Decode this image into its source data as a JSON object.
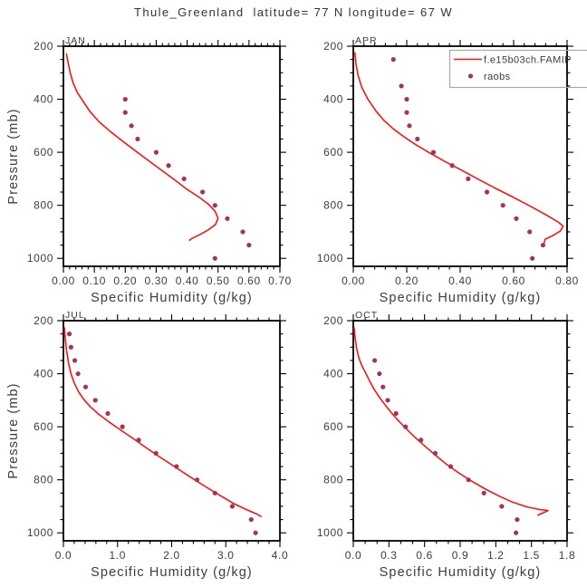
{
  "title": "Thule_Greenland  latitude= 77 N longitude= 67 W",
  "colors": {
    "model_line": "#fa1414",
    "raobs_dot": "#a73256",
    "axis": "#000000",
    "label_text": "#3d3d3d",
    "legend_border": "#a8a8a8"
  },
  "legend": {
    "entries": [
      {
        "style": "line",
        "label": "f.e15b03ch.FAMIP"
      },
      {
        "style": "dot",
        "label": "raobs"
      }
    ]
  },
  "chart_data": [
    {
      "type": "line",
      "title": "JAN",
      "xlabel": "Specific Humidity (g/kg)",
      "ylabel": "Pressure (mb)",
      "xlim": [
        0.0,
        0.7
      ],
      "ylim": [
        200,
        1030
      ],
      "xticks": [
        0.0,
        0.1,
        0.2,
        0.3,
        0.4,
        0.5,
        0.6,
        0.7
      ],
      "xtick_labels": [
        "0.00",
        "0.10",
        "0.20",
        "0.30",
        "0.40",
        "0.50",
        "0.60",
        "0.70"
      ],
      "x_minor_step": 0.02,
      "yticks": [
        200,
        400,
        600,
        800,
        1000
      ],
      "ytick_labels": [
        "200",
        "400",
        "600",
        "800",
        "1000"
      ],
      "y_minor_step": 50,
      "series": [
        {
          "name": "f.e15b03ch.FAMIP",
          "style": "line",
          "points": [
            [
              0.01,
              230
            ],
            [
              0.015,
              260
            ],
            [
              0.022,
              300
            ],
            [
              0.032,
              340
            ],
            [
              0.045,
              375
            ],
            [
              0.062,
              405
            ],
            [
              0.085,
              445
            ],
            [
              0.115,
              485
            ],
            [
              0.15,
              520
            ],
            [
              0.19,
              557
            ],
            [
              0.23,
              592
            ],
            [
              0.27,
              627
            ],
            [
              0.312,
              663
            ],
            [
              0.355,
              700
            ],
            [
              0.4,
              740
            ],
            [
              0.442,
              772
            ],
            [
              0.47,
              797
            ],
            [
              0.49,
              822
            ],
            [
              0.5,
              848
            ],
            [
              0.492,
              872
            ],
            [
              0.468,
              893
            ],
            [
              0.44,
              911
            ],
            [
              0.415,
              925
            ],
            [
              0.408,
              932
            ]
          ]
        },
        {
          "name": "raobs",
          "style": "scatter",
          "points": [
            [
              0.2,
              400
            ],
            [
              0.2,
              450
            ],
            [
              0.22,
              500
            ],
            [
              0.24,
              550
            ],
            [
              0.3,
              600
            ],
            [
              0.34,
              650
            ],
            [
              0.39,
              700
            ],
            [
              0.45,
              750
            ],
            [
              0.49,
              800
            ],
            [
              0.53,
              850
            ],
            [
              0.58,
              900
            ],
            [
              0.6,
              950
            ],
            [
              0.49,
              1000
            ]
          ]
        }
      ]
    },
    {
      "type": "line",
      "title": "APR",
      "xlabel": "Specific Humidity (g/kg)",
      "ylabel": "",
      "xlim": [
        0.0,
        0.8
      ],
      "ylim": [
        200,
        1030
      ],
      "xticks": [
        0.0,
        0.2,
        0.4,
        0.6,
        0.8
      ],
      "xtick_labels": [
        "0.00",
        "0.20",
        "0.40",
        "0.60",
        "0.80"
      ],
      "x_minor_step": 0.04,
      "yticks": [
        200,
        400,
        600,
        800,
        1000
      ],
      "ytick_labels": [
        "200",
        "400",
        "600",
        "800",
        "1000"
      ],
      "y_minor_step": 50,
      "series": [
        {
          "name": "f.e15b03ch.FAMIP",
          "style": "line",
          "points": [
            [
              0.006,
              225
            ],
            [
              0.01,
              265
            ],
            [
              0.018,
              310
            ],
            [
              0.032,
              355
            ],
            [
              0.055,
              400
            ],
            [
              0.085,
              445
            ],
            [
              0.115,
              480
            ],
            [
              0.15,
              512
            ],
            [
              0.19,
              542
            ],
            [
              0.235,
              572
            ],
            [
              0.285,
              602
            ],
            [
              0.34,
              633
            ],
            [
              0.4,
              665
            ],
            [
              0.465,
              700
            ],
            [
              0.53,
              735
            ],
            [
              0.6,
              770
            ],
            [
              0.665,
              805
            ],
            [
              0.72,
              835
            ],
            [
              0.765,
              862
            ],
            [
              0.785,
              878
            ],
            [
              0.775,
              897
            ],
            [
              0.745,
              915
            ],
            [
              0.718,
              928
            ],
            [
              0.715,
              940
            ]
          ]
        },
        {
          "name": "raobs",
          "style": "scatter",
          "points": [
            [
              0.15,
              250
            ],
            [
              0.18,
              350
            ],
            [
              0.2,
              400
            ],
            [
              0.2,
              450
            ],
            [
              0.21,
              500
            ],
            [
              0.24,
              550
            ],
            [
              0.3,
              600
            ],
            [
              0.37,
              650
            ],
            [
              0.43,
              700
            ],
            [
              0.5,
              750
            ],
            [
              0.56,
              800
            ],
            [
              0.61,
              850
            ],
            [
              0.66,
              900
            ],
            [
              0.71,
              950
            ],
            [
              0.67,
              1000
            ]
          ]
        }
      ]
    },
    {
      "type": "line",
      "title": "JUL",
      "xlabel": "Specific Humidity (g/kg)",
      "ylabel": "Pressure (mb)",
      "xlim": [
        0.0,
        4.0
      ],
      "ylim": [
        200,
        1030
      ],
      "xticks": [
        0.0,
        1.0,
        2.0,
        3.0,
        4.0
      ],
      "xtick_labels": [
        "0.0",
        "1.0",
        "2.0",
        "3.0",
        "4.0"
      ],
      "x_minor_step": 0.2,
      "yticks": [
        200,
        400,
        600,
        800,
        1000
      ],
      "ytick_labels": [
        "200",
        "400",
        "600",
        "800",
        "1000"
      ],
      "y_minor_step": 50,
      "series": [
        {
          "name": "f.e15b03ch.FAMIP",
          "style": "line",
          "points": [
            [
              0.02,
              228
            ],
            [
              0.035,
              270
            ],
            [
              0.06,
              315
            ],
            [
              0.095,
              360
            ],
            [
              0.14,
              400
            ],
            [
              0.2,
              435
            ],
            [
              0.28,
              468
            ],
            [
              0.38,
              498
            ],
            [
              0.5,
              525
            ],
            [
              0.65,
              552
            ],
            [
              0.83,
              580
            ],
            [
              1.04,
              610
            ],
            [
              1.27,
              642
            ],
            [
              1.52,
              678
            ],
            [
              1.78,
              714
            ],
            [
              2.05,
              750
            ],
            [
              2.33,
              788
            ],
            [
              2.62,
              825
            ],
            [
              2.9,
              860
            ],
            [
              3.15,
              890
            ],
            [
              3.38,
              912
            ],
            [
              3.56,
              928
            ],
            [
              3.65,
              938
            ]
          ]
        },
        {
          "name": "raobs",
          "style": "scatter",
          "points": [
            [
              0.11,
              250
            ],
            [
              0.14,
              300
            ],
            [
              0.21,
              350
            ],
            [
              0.27,
              400
            ],
            [
              0.41,
              450
            ],
            [
              0.59,
              500
            ],
            [
              0.82,
              550
            ],
            [
              1.09,
              600
            ],
            [
              1.39,
              650
            ],
            [
              1.71,
              700
            ],
            [
              2.09,
              750
            ],
            [
              2.47,
              800
            ],
            [
              2.8,
              850
            ],
            [
              3.12,
              900
            ],
            [
              3.47,
              950
            ],
            [
              3.55,
              1000
            ]
          ]
        }
      ]
    },
    {
      "type": "line",
      "title": "OCT",
      "xlabel": "Specific Humidity (g/kg)",
      "ylabel": "",
      "xlim": [
        0.0,
        1.8
      ],
      "ylim": [
        200,
        1030
      ],
      "xticks": [
        0.0,
        0.3,
        0.6,
        0.9,
        1.2,
        1.5,
        1.8
      ],
      "xtick_labels": [
        "0.0",
        "0.3",
        "0.6",
        "0.9",
        "1.2",
        "1.5",
        "1.8"
      ],
      "x_minor_step": 0.1,
      "yticks": [
        200,
        400,
        600,
        800,
        1000
      ],
      "ytick_labels": [
        "200",
        "400",
        "600",
        "800",
        "1000"
      ],
      "y_minor_step": 50,
      "series": [
        {
          "name": "f.e15b03ch.FAMIP",
          "style": "line",
          "points": [
            [
              0.008,
              228
            ],
            [
              0.015,
              265
            ],
            [
              0.028,
              305
            ],
            [
              0.048,
              342
            ],
            [
              0.075,
              372
            ],
            [
              0.105,
              398
            ],
            [
              0.14,
              430
            ],
            [
              0.18,
              462
            ],
            [
              0.225,
              492
            ],
            [
              0.275,
              522
            ],
            [
              0.33,
              552
            ],
            [
              0.39,
              582
            ],
            [
              0.455,
              612
            ],
            [
              0.525,
              642
            ],
            [
              0.6,
              672
            ],
            [
              0.685,
              705
            ],
            [
              0.775,
              738
            ],
            [
              0.875,
              770
            ],
            [
              0.985,
              802
            ],
            [
              1.1,
              832
            ],
            [
              1.22,
              860
            ],
            [
              1.34,
              884
            ],
            [
              1.46,
              902
            ],
            [
              1.57,
              912
            ],
            [
              1.64,
              916
            ],
            [
              1.6,
              924
            ],
            [
              1.555,
              933
            ]
          ]
        },
        {
          "name": "raobs",
          "style": "scatter",
          "points": [
            [
              0.18,
              350
            ],
            [
              0.22,
              400
            ],
            [
              0.25,
              450
            ],
            [
              0.29,
              500
            ],
            [
              0.36,
              550
            ],
            [
              0.44,
              600
            ],
            [
              0.57,
              650
            ],
            [
              0.69,
              700
            ],
            [
              0.82,
              750
            ],
            [
              0.97,
              800
            ],
            [
              1.1,
              850
            ],
            [
              1.25,
              900
            ],
            [
              1.38,
              950
            ],
            [
              1.37,
              1000
            ]
          ]
        }
      ]
    }
  ]
}
